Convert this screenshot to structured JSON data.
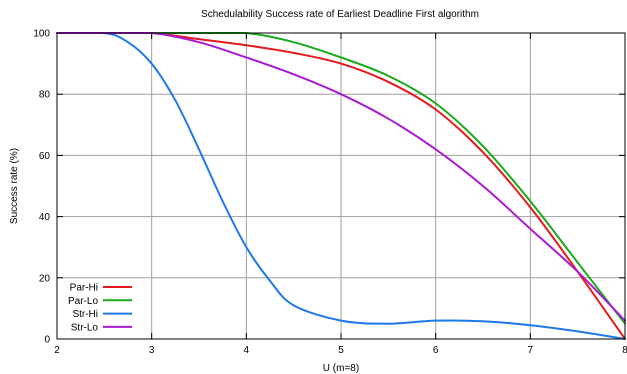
{
  "chart_data": {
    "type": "line",
    "title": "Schedulability Success rate of Earliest Deadline First algorithm",
    "xlabel": "U (m=8)",
    "ylabel": "Success rate (%)",
    "xlim": [
      2,
      8
    ],
    "ylim": [
      0,
      100
    ],
    "xticks": [
      2,
      3,
      4,
      5,
      6,
      7,
      8
    ],
    "yticks": [
      0,
      20,
      40,
      60,
      80,
      100
    ],
    "grid": true,
    "legend_position": "bottom-left",
    "series": [
      {
        "name": "Par-Hi",
        "color": "#e41a1c",
        "x": [
          2,
          2.5,
          3,
          3.5,
          4,
          4.5,
          5,
          5.5,
          6,
          6.5,
          7,
          7.5,
          8
        ],
        "y": [
          100,
          100,
          100,
          98,
          96,
          93.5,
          90,
          84,
          75,
          61,
          43,
          22,
          0
        ]
      },
      {
        "name": "Par-Lo",
        "color": "#1aaa1a",
        "x": [
          2,
          2.5,
          3,
          3.5,
          4,
          4.5,
          5,
          5.5,
          6,
          6.5,
          7,
          7.5,
          8
        ],
        "y": [
          100,
          100,
          100,
          100,
          100,
          97,
          92,
          86,
          77,
          63,
          45,
          25,
          5
        ]
      },
      {
        "name": "Str-Hi",
        "color": "#1f78e8",
        "x": [
          2,
          2.5,
          2.75,
          3,
          3.25,
          3.5,
          3.75,
          4,
          4.25,
          4.5,
          5,
          5.5,
          6,
          6.5,
          7,
          7.5,
          8
        ],
        "y": [
          100,
          100,
          97,
          90,
          78,
          62,
          45,
          30,
          19,
          11,
          6,
          5,
          6,
          5.8,
          4.5,
          2.5,
          0
        ]
      },
      {
        "name": "Str-Lo",
        "color": "#aa1ad4",
        "x": [
          2,
          2.5,
          3,
          3.5,
          4,
          4.5,
          5,
          5.5,
          6,
          6.5,
          7,
          7.5,
          8
        ],
        "y": [
          100,
          100,
          100,
          97,
          92,
          86.5,
          80,
          72,
          62,
          50,
          36,
          22,
          6
        ]
      }
    ]
  }
}
